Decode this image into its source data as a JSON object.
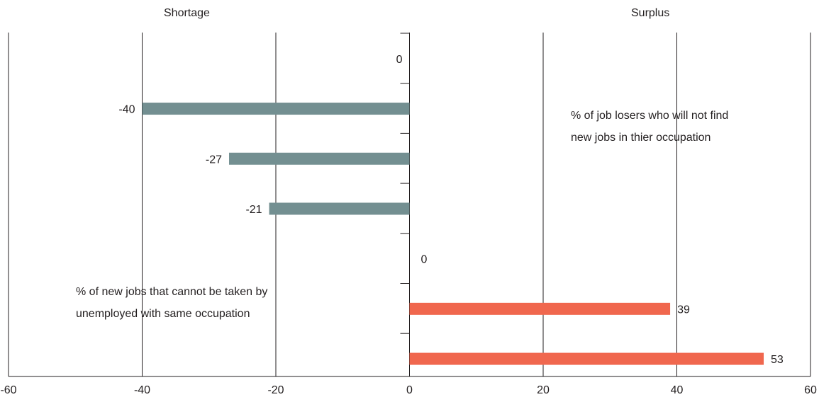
{
  "headers": {
    "left": "Shortage",
    "right": "Surplus"
  },
  "annotations": {
    "right": [
      "% of job losers who will not find",
      "new jobs in thier occupation"
    ],
    "left": [
      "% of new jobs that cannot be taken by",
      "unemployed with same occupation"
    ]
  },
  "colors": {
    "negative": "#738f91",
    "positive": "#f0674e",
    "axis": "#231f20"
  },
  "chart_data": {
    "type": "bar",
    "orientation": "horizontal",
    "values": [
      0,
      -40,
      -27,
      -21,
      0,
      39,
      53
    ],
    "xlim": [
      -60,
      60
    ],
    "xticks": [
      -60,
      -40,
      -20,
      0,
      20,
      40,
      60
    ],
    "grid": "vertical"
  }
}
